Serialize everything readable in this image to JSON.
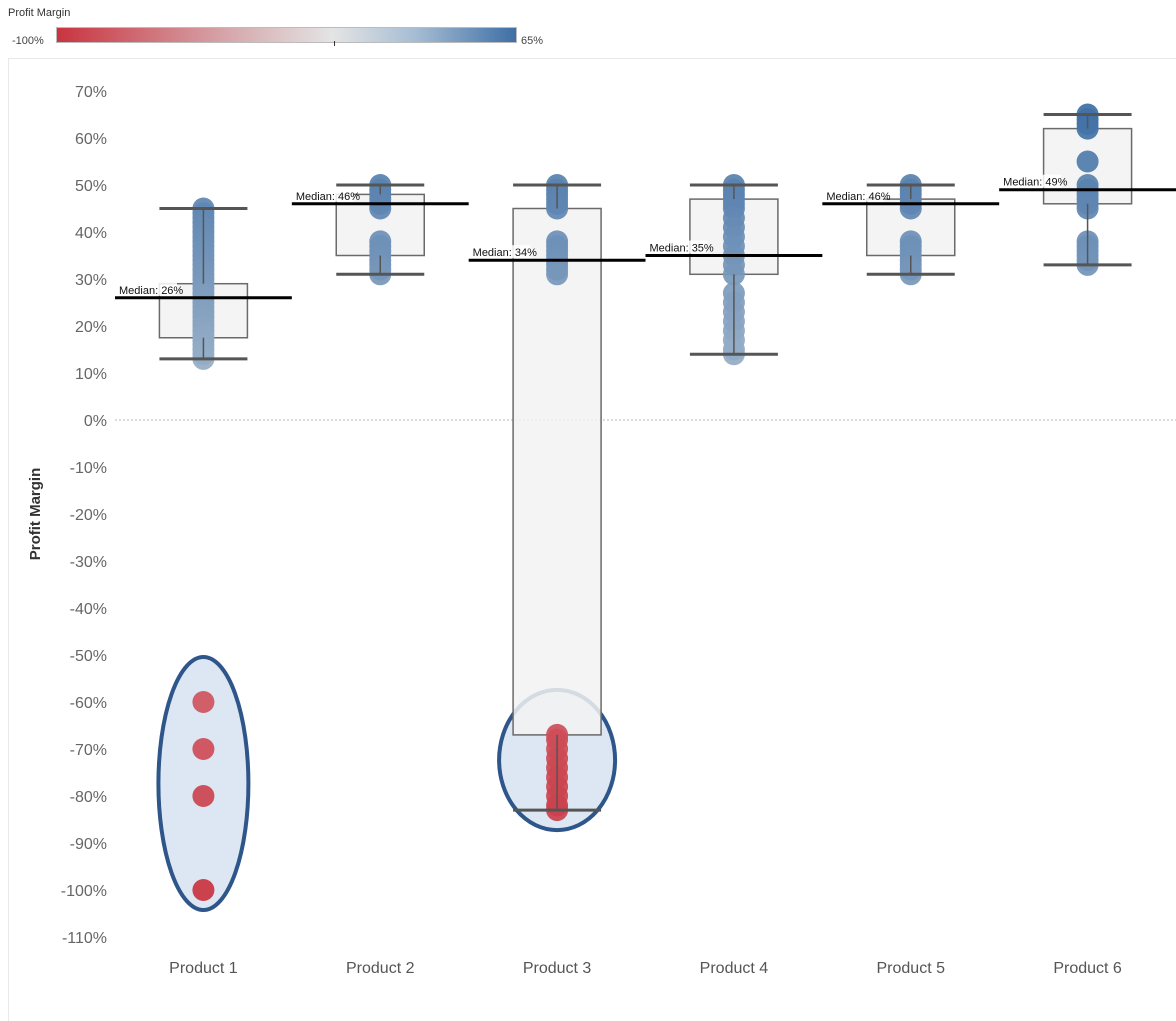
{
  "legend": {
    "title": "Profit Margin",
    "min_label": "-100%",
    "max_label": "65%",
    "color_low": "#c93440",
    "color_mid": "#e4e4e4",
    "color_high": "#3e6fa5"
  },
  "chart_data": {
    "type": "box",
    "title": "",
    "xlabel": "",
    "ylabel": "Profit Margin",
    "ylim": [
      -110,
      70
    ],
    "y_unit": "%",
    "y_ticks": [
      "70%",
      "60%",
      "50%",
      "40%",
      "30%",
      "20%",
      "10%",
      "0%",
      "-10%",
      "-20%",
      "-30%",
      "-40%",
      "-50%",
      "-60%",
      "-70%",
      "-80%",
      "-90%",
      "-100%",
      "-110%"
    ],
    "y_tick_values": [
      70,
      60,
      50,
      40,
      30,
      20,
      10,
      0,
      -10,
      -20,
      -30,
      -40,
      -50,
      -60,
      -70,
      -80,
      -90,
      -100,
      -110
    ],
    "categories": [
      "Product 1",
      "Product 2",
      "Product 3",
      "Product 4",
      "Product 5",
      "Product 6"
    ],
    "boxes": [
      {
        "category": "Product 1",
        "whisker_low": 13,
        "q1": 17.5,
        "median": 26,
        "q3": 29,
        "whisker_high": 45,
        "median_label": "Median: 26%"
      },
      {
        "category": "Product 2",
        "whisker_low": 31,
        "q1": 35,
        "median": 46,
        "q3": 48,
        "whisker_high": 50,
        "median_label": "Median: 46%"
      },
      {
        "category": "Product 3",
        "whisker_low": -83,
        "q1": -67,
        "median": 34,
        "q3": 45,
        "whisker_high": 50,
        "median_label": "Median: 34%"
      },
      {
        "category": "Product 4",
        "whisker_low": 14,
        "q1": 31,
        "median": 35,
        "q3": 47,
        "whisker_high": 50,
        "median_label": "Median: 35%"
      },
      {
        "category": "Product 5",
        "whisker_low": 31,
        "q1": 35,
        "median": 46,
        "q3": 47,
        "whisker_high": 50,
        "median_label": "Median: 46%"
      },
      {
        "category": "Product 6",
        "whisker_low": 33,
        "q1": 46,
        "median": 49,
        "q3": 62,
        "whisker_high": 65,
        "median_label": "Median: 49%"
      }
    ],
    "points": [
      {
        "category": "Product 1",
        "values": [
          45,
          44,
          43,
          42,
          41,
          40,
          39,
          38,
          37,
          36,
          35,
          34,
          33,
          32,
          31,
          30,
          29,
          28,
          27,
          26,
          25,
          24,
          23,
          22,
          21,
          20,
          19,
          18,
          17,
          16,
          15,
          14,
          13,
          -60,
          -70,
          -80,
          -100
        ]
      },
      {
        "category": "Product 2",
        "values": [
          50,
          49,
          48,
          47,
          46,
          45,
          38,
          37,
          36,
          35,
          34,
          33,
          32,
          31
        ]
      },
      {
        "category": "Product 3",
        "values": [
          50,
          49,
          48,
          47,
          46,
          45,
          38,
          37,
          36,
          35,
          34,
          33,
          32,
          31,
          -67,
          -68,
          -70,
          -72,
          -74,
          -76,
          -78,
          -80,
          -82,
          -83
        ]
      },
      {
        "category": "Product 4",
        "values": [
          50,
          49,
          48,
          47,
          46,
          45,
          43,
          41,
          39,
          37,
          35,
          33,
          31,
          27,
          25,
          23,
          21,
          19,
          17,
          15,
          14
        ]
      },
      {
        "category": "Product 5",
        "values": [
          50,
          49,
          48,
          47,
          46,
          45,
          38,
          37,
          36,
          35,
          34,
          33,
          32,
          31
        ]
      },
      {
        "category": "Product 6",
        "values": [
          65,
          64,
          63,
          62,
          55,
          50,
          49,
          48,
          47,
          46,
          45,
          38,
          37,
          36,
          35,
          34,
          33
        ]
      }
    ],
    "highlighted_outliers": [
      {
        "category": "Product 1",
        "range": [
          -100,
          -60
        ]
      },
      {
        "category": "Product 3",
        "range": [
          -83,
          -67
        ]
      }
    ],
    "reference_line": 0,
    "grid": false,
    "legend_position": "top-left"
  }
}
